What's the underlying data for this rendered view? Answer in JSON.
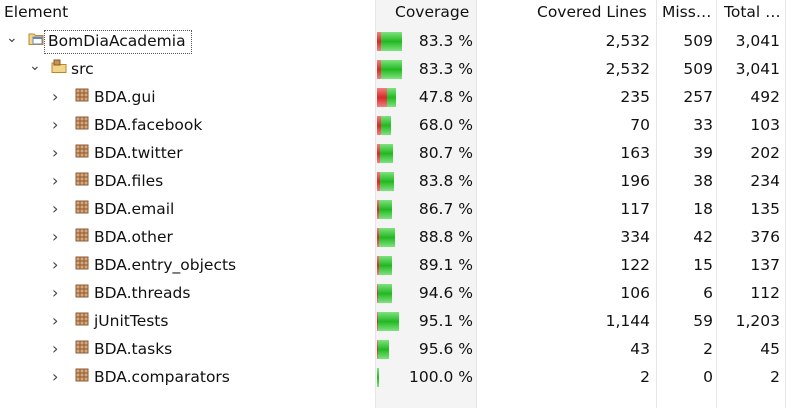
{
  "columns": {
    "element": "Element",
    "coverage": "Coverage",
    "covered": "Covered Lines",
    "missed": "Miss…",
    "total": "Total …"
  },
  "colors": {
    "covered": "#22b822",
    "missed": "#d42a2a",
    "coverage_column_bg": "#f4f4f4"
  },
  "rows": [
    {
      "name": "BomDiaAcademia",
      "level": 0,
      "icon": "project-icon",
      "expanded": true,
      "coverage_text": "83.3 %",
      "coverage_ratio": 0.833,
      "covered": "2,532",
      "missed": "509",
      "total": "3,041"
    },
    {
      "name": "src",
      "level": 1,
      "icon": "source-folder-icon",
      "expanded": true,
      "coverage_text": "83.3 %",
      "coverage_ratio": 0.833,
      "covered": "2,532",
      "missed": "509",
      "total": "3,041"
    },
    {
      "name": "BDA.gui",
      "level": 2,
      "icon": "package-icon",
      "expanded": false,
      "coverage_text": "47.8 %",
      "coverage_ratio": 0.478,
      "covered": "235",
      "missed": "257",
      "total": "492"
    },
    {
      "name": "BDA.facebook",
      "level": 2,
      "icon": "package-icon",
      "expanded": false,
      "coverage_text": "68.0 %",
      "coverage_ratio": 0.68,
      "covered": "70",
      "missed": "33",
      "total": "103"
    },
    {
      "name": "BDA.twitter",
      "level": 2,
      "icon": "package-icon",
      "expanded": false,
      "coverage_text": "80.7 %",
      "coverage_ratio": 0.807,
      "covered": "163",
      "missed": "39",
      "total": "202"
    },
    {
      "name": "BDA.files",
      "level": 2,
      "icon": "package-icon",
      "expanded": false,
      "coverage_text": "83.8 %",
      "coverage_ratio": 0.838,
      "covered": "196",
      "missed": "38",
      "total": "234"
    },
    {
      "name": "BDA.email",
      "level": 2,
      "icon": "package-icon",
      "expanded": false,
      "coverage_text": "86.7 %",
      "coverage_ratio": 0.867,
      "covered": "117",
      "missed": "18",
      "total": "135"
    },
    {
      "name": "BDA.other",
      "level": 2,
      "icon": "package-icon",
      "expanded": false,
      "coverage_text": "88.8 %",
      "coverage_ratio": 0.888,
      "covered": "334",
      "missed": "42",
      "total": "376"
    },
    {
      "name": "BDA.entry_objects",
      "level": 2,
      "icon": "package-icon",
      "expanded": false,
      "coverage_text": "89.1 %",
      "coverage_ratio": 0.891,
      "covered": "122",
      "missed": "15",
      "total": "137"
    },
    {
      "name": "BDA.threads",
      "level": 2,
      "icon": "package-icon",
      "expanded": false,
      "coverage_text": "94.6 %",
      "coverage_ratio": 0.946,
      "covered": "106",
      "missed": "6",
      "total": "112"
    },
    {
      "name": "jUnitTests",
      "level": 2,
      "icon": "package-icon",
      "expanded": false,
      "coverage_text": "95.1 %",
      "coverage_ratio": 0.951,
      "covered": "1,144",
      "missed": "59",
      "total": "1,203"
    },
    {
      "name": "BDA.tasks",
      "level": 2,
      "icon": "package-icon",
      "expanded": false,
      "coverage_text": "95.6 %",
      "coverage_ratio": 0.956,
      "covered": "43",
      "missed": "2",
      "total": "45"
    },
    {
      "name": "BDA.comparators",
      "level": 2,
      "icon": "package-icon",
      "expanded": false,
      "coverage_text": "100.0 %",
      "coverage_ratio": 1.0,
      "covered": "2",
      "missed": "0",
      "total": "2"
    }
  ]
}
